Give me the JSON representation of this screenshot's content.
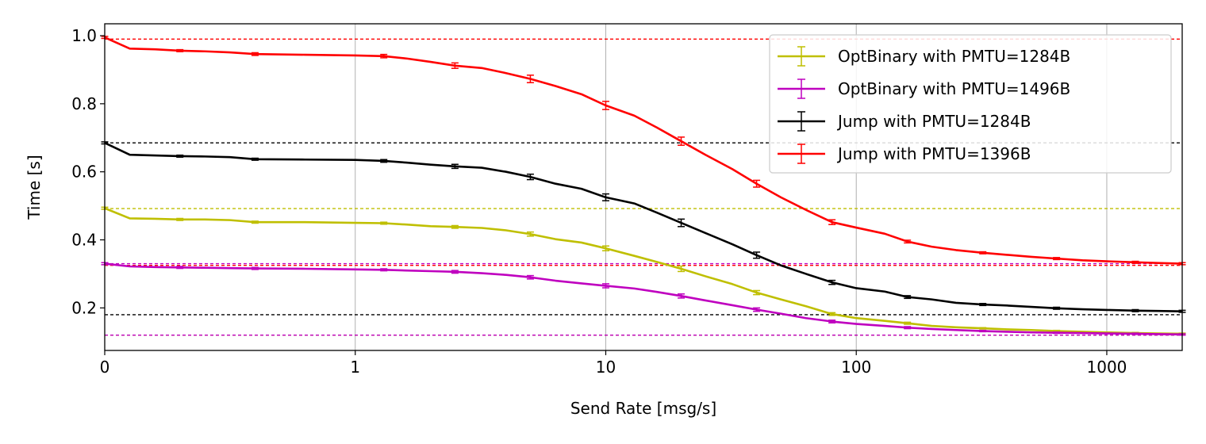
{
  "chart_data": {
    "type": "line",
    "title": "",
    "xlabel": "Send Rate [msg/s]",
    "ylabel": "Time [s]",
    "x_scale": "symlog",
    "xlim": [
      0,
      2000
    ],
    "ylim": [
      0.075,
      1.035
    ],
    "grid": "x",
    "legend_position": "top-right",
    "x_ticks": [
      {
        "value": 0,
        "label": "0"
      },
      {
        "value": 1,
        "label": "1"
      },
      {
        "value": 10,
        "label": "10"
      },
      {
        "value": 100,
        "label": "100"
      },
      {
        "value": 1000,
        "label": "1000"
      }
    ],
    "y_ticks": [
      {
        "value": 0.2,
        "label": "0.2"
      },
      {
        "value": 0.4,
        "label": "0.4"
      },
      {
        "value": 0.6,
        "label": "0.6"
      },
      {
        "value": 0.8,
        "label": "0.8"
      },
      {
        "value": 1.0,
        "label": "1.0"
      }
    ],
    "reference_lines": [
      {
        "y": 0.99,
        "color": "#ff0000"
      },
      {
        "y": 0.325,
        "color": "#ff0000"
      },
      {
        "y": 0.685,
        "color": "#000000"
      },
      {
        "y": 0.18,
        "color": "#000000"
      },
      {
        "y": 0.492,
        "color": "#bfbf00"
      },
      {
        "y": 0.12,
        "color": "#bfbf00"
      },
      {
        "y": 0.33,
        "color": "#bf00bf"
      },
      {
        "y": 0.12,
        "color": "#bf00bf"
      }
    ],
    "series": [
      {
        "name": "OptBinary with PMTU=1284B",
        "color": "#bfbf00",
        "x": [
          0,
          0.1,
          0.2,
          0.3,
          0.4,
          0.5,
          0.6,
          0.8,
          1,
          1.3,
          1.6,
          2,
          2.5,
          3.2,
          4,
          5,
          6.3,
          8,
          10,
          13,
          16,
          20,
          25,
          32,
          40,
          50,
          63,
          80,
          100,
          130,
          160,
          200,
          250,
          320,
          400,
          500,
          630,
          800,
          1000,
          1300,
          1600,
          2000
        ],
        "y": [
          0.493,
          0.463,
          0.462,
          0.46,
          0.46,
          0.458,
          0.452,
          0.452,
          0.45,
          0.449,
          0.445,
          0.44,
          0.438,
          0.435,
          0.428,
          0.417,
          0.402,
          0.392,
          0.375,
          0.353,
          0.335,
          0.315,
          0.293,
          0.27,
          0.245,
          0.225,
          0.205,
          0.182,
          0.17,
          0.162,
          0.155,
          0.147,
          0.143,
          0.14,
          0.137,
          0.135,
          0.132,
          0.13,
          0.128,
          0.126,
          0.125,
          0.124
        ],
        "err": [
          0.003,
          0.003,
          0.003,
          0.003,
          0.003,
          0.003,
          0.003,
          0.003,
          0.003,
          0.003,
          0.004,
          0.004,
          0.004,
          0.005,
          0.005,
          0.006,
          0.006,
          0.007,
          0.007,
          0.008,
          0.008,
          0.008,
          0.007,
          0.007,
          0.006,
          0.005,
          0.004,
          0.004,
          0.003,
          0.003,
          0.003,
          0.002,
          0.002,
          0.002,
          0.002,
          0.002,
          0.002,
          0.002,
          0.002,
          0.002,
          0.002,
          0.002
        ]
      },
      {
        "name": "OptBinary with PMTU=1496B",
        "color": "#bf00bf",
        "x": [
          0,
          0.1,
          0.2,
          0.3,
          0.4,
          0.5,
          0.6,
          0.8,
          1,
          1.3,
          1.6,
          2,
          2.5,
          3.2,
          4,
          5,
          6.3,
          8,
          10,
          13,
          16,
          20,
          25,
          32,
          40,
          50,
          63,
          80,
          100,
          130,
          160,
          200,
          250,
          320,
          400,
          500,
          630,
          800,
          1000,
          1300,
          1600,
          2000
        ],
        "y": [
          0.33,
          0.322,
          0.32,
          0.319,
          0.318,
          0.317,
          0.316,
          0.315,
          0.313,
          0.312,
          0.31,
          0.308,
          0.306,
          0.302,
          0.297,
          0.29,
          0.28,
          0.272,
          0.265,
          0.257,
          0.247,
          0.235,
          0.222,
          0.208,
          0.195,
          0.183,
          0.17,
          0.16,
          0.153,
          0.147,
          0.142,
          0.138,
          0.135,
          0.132,
          0.13,
          0.128,
          0.127,
          0.126,
          0.125,
          0.124,
          0.123,
          0.122
        ],
        "err": [
          0.003,
          0.003,
          0.003,
          0.003,
          0.003,
          0.003,
          0.003,
          0.003,
          0.003,
          0.003,
          0.004,
          0.004,
          0.004,
          0.005,
          0.005,
          0.005,
          0.005,
          0.006,
          0.006,
          0.006,
          0.006,
          0.006,
          0.006,
          0.005,
          0.005,
          0.004,
          0.004,
          0.004,
          0.003,
          0.003,
          0.003,
          0.003,
          0.002,
          0.002,
          0.002,
          0.002,
          0.002,
          0.002,
          0.002,
          0.002,
          0.002,
          0.002
        ]
      },
      {
        "name": "Jump with PMTU=1284B",
        "color": "#000000",
        "x": [
          0,
          0.1,
          0.2,
          0.3,
          0.4,
          0.5,
          0.6,
          0.8,
          1,
          1.3,
          1.6,
          2,
          2.5,
          3.2,
          4,
          5,
          6.3,
          8,
          10,
          13,
          16,
          20,
          25,
          32,
          40,
          50,
          63,
          80,
          100,
          130,
          160,
          200,
          250,
          320,
          400,
          500,
          630,
          800,
          1000,
          1300,
          1600,
          2000
        ],
        "y": [
          0.685,
          0.65,
          0.648,
          0.646,
          0.645,
          0.643,
          0.637,
          0.636,
          0.635,
          0.632,
          0.627,
          0.621,
          0.616,
          0.612,
          0.6,
          0.585,
          0.565,
          0.55,
          0.525,
          0.507,
          0.48,
          0.45,
          0.42,
          0.387,
          0.355,
          0.325,
          0.3,
          0.275,
          0.258,
          0.248,
          0.232,
          0.225,
          0.215,
          0.21,
          0.207,
          0.203,
          0.199,
          0.196,
          0.194,
          0.192,
          0.191,
          0.19
        ],
        "err": [
          0.003,
          0.003,
          0.003,
          0.003,
          0.003,
          0.003,
          0.003,
          0.003,
          0.003,
          0.004,
          0.005,
          0.006,
          0.006,
          0.007,
          0.007,
          0.008,
          0.009,
          0.01,
          0.01,
          0.011,
          0.011,
          0.011,
          0.011,
          0.01,
          0.009,
          0.008,
          0.007,
          0.006,
          0.005,
          0.004,
          0.004,
          0.003,
          0.003,
          0.003,
          0.003,
          0.003,
          0.003,
          0.003,
          0.003,
          0.003,
          0.003,
          0.003
        ]
      },
      {
        "name": "Jump with PMTU=1396B",
        "color": "#ff0000",
        "x": [
          0,
          0.1,
          0.2,
          0.3,
          0.4,
          0.5,
          0.6,
          0.8,
          1,
          1.3,
          1.6,
          2,
          2.5,
          3.2,
          4,
          5,
          6.3,
          8,
          10,
          13,
          16,
          20,
          25,
          32,
          40,
          50,
          63,
          80,
          100,
          130,
          160,
          200,
          250,
          320,
          400,
          500,
          630,
          800,
          1000,
          1300,
          1600,
          2000
        ],
        "y": [
          0.995,
          0.962,
          0.96,
          0.956,
          0.954,
          0.951,
          0.946,
          0.944,
          0.942,
          0.94,
          0.933,
          0.923,
          0.912,
          0.905,
          0.89,
          0.873,
          0.852,
          0.828,
          0.795,
          0.765,
          0.73,
          0.69,
          0.65,
          0.608,
          0.565,
          0.525,
          0.488,
          0.452,
          0.436,
          0.418,
          0.395,
          0.38,
          0.37,
          0.362,
          0.356,
          0.35,
          0.345,
          0.34,
          0.337,
          0.334,
          0.332,
          0.33
        ],
        "err": [
          0.003,
          0.003,
          0.003,
          0.003,
          0.003,
          0.003,
          0.004,
          0.004,
          0.004,
          0.005,
          0.006,
          0.007,
          0.008,
          0.009,
          0.01,
          0.011,
          0.011,
          0.012,
          0.012,
          0.012,
          0.012,
          0.012,
          0.011,
          0.011,
          0.01,
          0.009,
          0.008,
          0.007,
          0.006,
          0.005,
          0.004,
          0.004,
          0.003,
          0.003,
          0.003,
          0.003,
          0.003,
          0.003,
          0.003,
          0.003,
          0.003,
          0.003
        ]
      }
    ]
  }
}
